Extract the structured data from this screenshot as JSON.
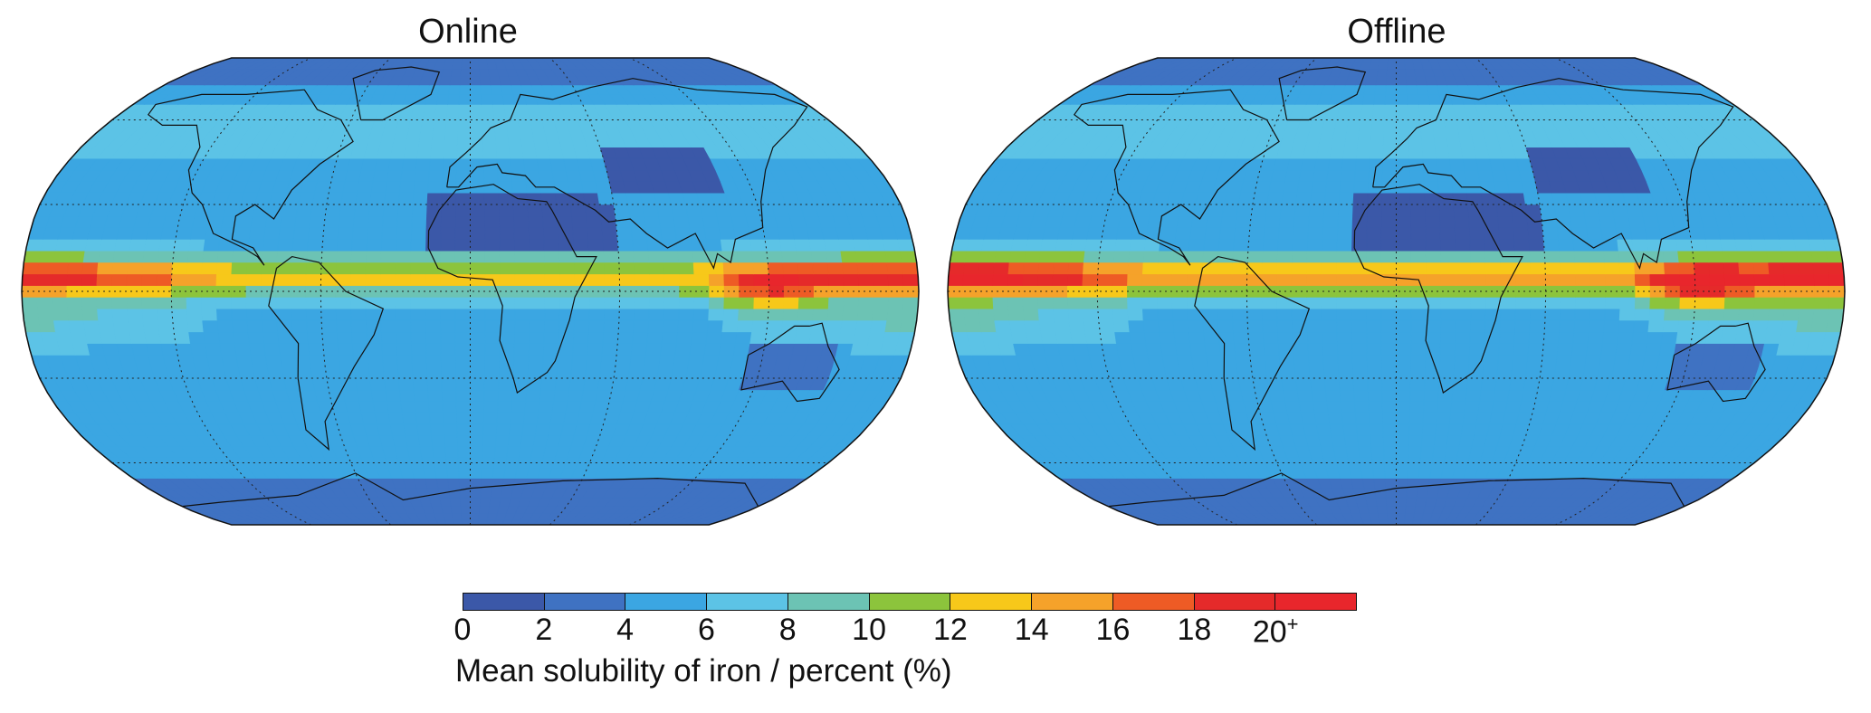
{
  "panels": [
    {
      "title": "Online",
      "itcz_intensity": 0.85
    },
    {
      "title": "Offline",
      "itcz_intensity": 1.0
    }
  ],
  "legend": {
    "label": "Mean solubility of iron / percent (%)",
    "ticks": [
      "0",
      "2",
      "4",
      "6",
      "8",
      "10",
      "12",
      "14",
      "16",
      "18",
      "20"
    ],
    "tick_last_suffix": "+",
    "bins": [
      {
        "range": "0-2",
        "color": "#3b58a8"
      },
      {
        "range": "2-4",
        "color": "#3f72c2"
      },
      {
        "range": "4-6",
        "color": "#3ba6e2"
      },
      {
        "range": "6-8",
        "color": "#5cc3e6"
      },
      {
        "range": "8-10",
        "color": "#6cc3b4"
      },
      {
        "range": "10-12",
        "color": "#8cc43c"
      },
      {
        "range": "12-14",
        "color": "#f7c81a"
      },
      {
        "range": "14-16",
        "color": "#f5a22a"
      },
      {
        "range": "16-18",
        "color": "#ee5b25"
      },
      {
        "range": "18-20",
        "color": "#e52a2a"
      },
      {
        "range": "20+",
        "color": "#e8262c"
      }
    ]
  }
}
